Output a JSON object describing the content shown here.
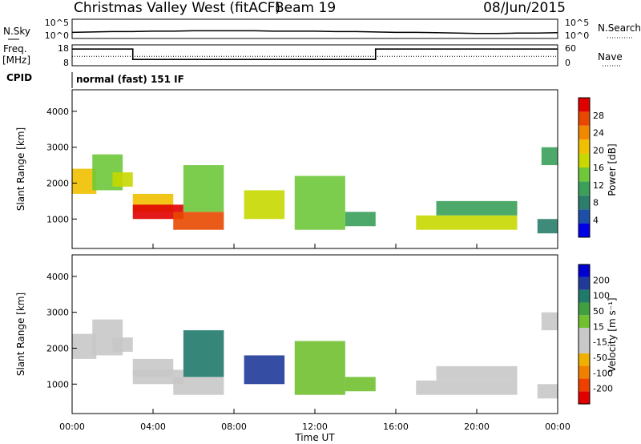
{
  "header": {
    "station": "Christmas Valley West (fitACF)",
    "beam": "Beam 19",
    "date": "08/Jun/2015"
  },
  "left_labels": {
    "nsky": "N.Sky",
    "freq": "Freq.",
    "freq_unit": "[MHz]",
    "cpid": "CPID"
  },
  "right_labels": {
    "nsearch": "N.Search",
    "nave": "Nave"
  },
  "cpid_text": "normal (fast) 151 IF",
  "colors": {
    "power_scale": [
      "#0000e8",
      "#1c4fa8",
      "#2a7e6a",
      "#3aa05a",
      "#6ec83a",
      "#c8d800",
      "#f0c000",
      "#f08800",
      "#e84800",
      "#e00000"
    ],
    "velocity_scale": [
      "#e00000",
      "#f04000",
      "#f08000",
      "#f0b000",
      "#c8c8c8",
      "#c8c8c8",
      "#70c030",
      "#40a040",
      "#207a6a",
      "#203a9a",
      "#0000d0"
    ]
  },
  "chart_data": [
    {
      "type": "line",
      "name": "noise",
      "left_tick_labels": [
        "10^5",
        "10^0"
      ],
      "right_tick_labels": [
        "10^5",
        "10^0"
      ],
      "ylim_log10": [
        0,
        5
      ],
      "series": [
        {
          "x_hours": [
            0,
            1,
            2,
            3,
            4,
            5,
            6,
            7,
            8,
            9,
            10,
            11,
            12,
            13,
            14,
            15,
            16,
            17,
            18,
            19,
            20,
            21,
            22,
            23,
            24
          ],
          "values_log10": [
            1.6,
            1.7,
            1.8,
            1.8,
            1.9,
            1.9,
            2.0,
            2.0,
            2.0,
            2.0,
            1.9,
            1.9,
            1.9,
            1.8,
            1.8,
            1.7,
            1.6,
            1.6,
            1.5,
            1.4,
            1.3,
            1.3,
            1.4,
            1.4,
            1.5
          ]
        }
      ]
    },
    {
      "type": "line",
      "name": "frequency",
      "left_tick_labels": [
        "18",
        "8"
      ],
      "right_tick_labels": [
        "60",
        "0"
      ],
      "ylim_mhz": [
        8,
        18
      ],
      "series": [
        {
          "x_hours": [
            0,
            3,
            3,
            15,
            15,
            24
          ],
          "values": [
            16,
            16,
            11,
            11,
            16,
            16
          ]
        },
        {
          "x_hours": [
            0,
            24
          ],
          "values": [
            12.5,
            12.5
          ]
        }
      ]
    },
    {
      "type": "heatmap",
      "name": "power",
      "ylabel": "Slant Range [km]",
      "y_ticks": [
        "1000",
        "2000",
        "3000",
        "4000"
      ],
      "ylim": [
        180,
        4600
      ],
      "colorbar_label": "Power [dB]",
      "colorbar_ticks": [
        "4",
        "8",
        "12",
        "16",
        "20",
        "24",
        "28"
      ],
      "colorbar_range": [
        0,
        32
      ]
    },
    {
      "type": "heatmap",
      "name": "velocity",
      "ylabel": "Slant Range [km]",
      "y_ticks": [
        "1000",
        "2000",
        "3000",
        "4000"
      ],
      "ylim": [
        180,
        4600
      ],
      "colorbar_label": "Velocity [m s⁻¹]",
      "colorbar_ticks": [
        "200",
        "100",
        "50",
        "15",
        "-15",
        "-50",
        "-100",
        "-200"
      ],
      "colorbar_range": [
        -250,
        250
      ]
    }
  ],
  "x_axis": {
    "label": "Time UT",
    "ticks": [
      "00:00",
      "04:00",
      "08:00",
      "12:00",
      "16:00",
      "20:00",
      "00:00"
    ],
    "xlim_hours": [
      0,
      24
    ]
  },
  "echo_regions": [
    {
      "hours": [
        0.0,
        1.2
      ],
      "range_km": [
        1700,
        2400
      ],
      "power": 20,
      "velocity": 10
    },
    {
      "hours": [
        1.0,
        2.5
      ],
      "range_km": [
        1800,
        2800
      ],
      "power": 14,
      "velocity": 5
    },
    {
      "hours": [
        2.0,
        3.0
      ],
      "range_km": [
        1900,
        2300
      ],
      "power": 18,
      "velocity": 0
    },
    {
      "hours": [
        3.0,
        5.0
      ],
      "range_km": [
        1200,
        1700
      ],
      "power": 22,
      "velocity": 0
    },
    {
      "hours": [
        3.0,
        5.5
      ],
      "range_km": [
        1000,
        1400
      ],
      "power": 30,
      "velocity": -30
    },
    {
      "hours": [
        5.0,
        7.5
      ],
      "range_km": [
        700,
        1200
      ],
      "power": 26,
      "velocity": -40
    },
    {
      "hours": [
        5.5,
        7.5
      ],
      "range_km": [
        1200,
        2500
      ],
      "power": 14,
      "velocity": 120
    },
    {
      "hours": [
        8.5,
        10.5
      ],
      "range_km": [
        1000,
        1800
      ],
      "power": 18,
      "velocity": 180
    },
    {
      "hours": [
        11.0,
        13.5
      ],
      "range_km": [
        700,
        2200
      ],
      "power": 14,
      "velocity": 60
    },
    {
      "hours": [
        13.5,
        15.0
      ],
      "range_km": [
        800,
        1200
      ],
      "power": 10,
      "velocity": 40
    },
    {
      "hours": [
        17.0,
        22.0
      ],
      "range_km": [
        700,
        1100
      ],
      "power": 16,
      "velocity": 0
    },
    {
      "hours": [
        18.0,
        22.0
      ],
      "range_km": [
        1100,
        1500
      ],
      "power": 10,
      "velocity": 0
    },
    {
      "hours": [
        23.0,
        24.0
      ],
      "range_km": [
        600,
        1000
      ],
      "power": 8,
      "velocity": 0
    },
    {
      "hours": [
        23.2,
        24.0
      ],
      "range_km": [
        2500,
        3000
      ],
      "power": 10,
      "velocity": 5
    }
  ]
}
